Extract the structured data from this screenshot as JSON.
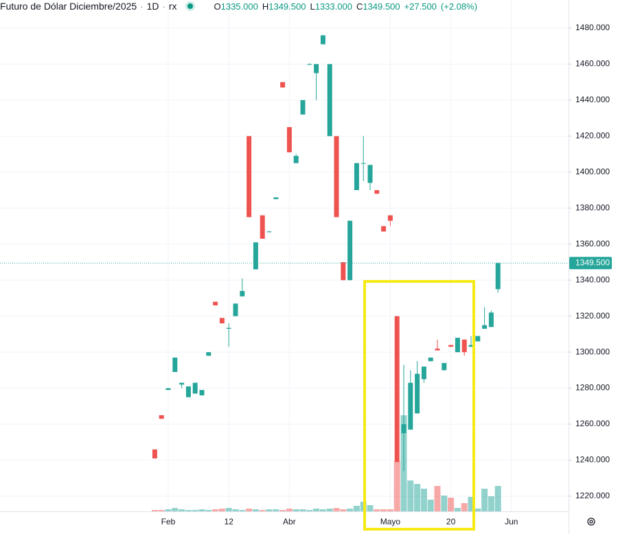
{
  "chart_data": {
    "type": "candlestick",
    "title": "Futuro de Dólar Diciembre/2025",
    "interval": "1D",
    "exchange": "rx",
    "ohlc": [
      {
        "name": "O",
        "text": "1335.000"
      },
      {
        "name": "H",
        "text": "1349.500"
      },
      {
        "name": "L",
        "text": "1333.000"
      },
      {
        "name": "C",
        "text": "1349.500"
      }
    ],
    "change": "+27.500",
    "change_pct": "(+2.08%)",
    "categories": [
      null,
      null,
      "Feb",
      null,
      null,
      null,
      null,
      null,
      null,
      null,
      null,
      "12",
      null,
      null,
      null,
      null,
      null,
      null,
      null,
      null,
      "Abr",
      null,
      null,
      null,
      null,
      null,
      null,
      null,
      null,
      null,
      null,
      null,
      null,
      null,
      null,
      "Mayo",
      null,
      null,
      null,
      null,
      null,
      null,
      null,
      null,
      "20",
      null,
      null,
      null,
      null,
      null,
      null,
      null,
      null,
      "Jun"
    ],
    "open": [
      1246,
      1265,
      1279,
      1289,
      1282,
      1275,
      1277,
      1276,
      1298,
      1328,
      1319,
      1313,
      1320,
      1331,
      1420,
      1346,
      1376,
      1367,
      1385,
      1450,
      1425,
      1405,
      1432,
      1460,
      1455,
      1471,
      1420,
      1420,
      1350,
      1340,
      1390,
      1405,
      1394,
      1390,
      1370,
      1376,
      1320,
      1255,
      1257,
      1266,
      1285,
      1295,
      1302,
      1290,
      1304,
      1300,
      1307,
      1303,
      1306,
      1313,
      1314,
      1335,
      null,
      null
    ],
    "high": [
      1246,
      1265,
      1280,
      1297,
      1283,
      1281,
      1283,
      1279,
      1300,
      1328,
      1319,
      1316,
      1327,
      1341,
      1420,
      1361,
      1376,
      1367.5,
      1386,
      1450,
      1425,
      1410,
      1440,
      1460.5,
      1460,
      1476,
      1460,
      1420,
      1350,
      1373,
      1405,
      1420,
      1404,
      1390,
      1370,
      1376,
      1320,
      1293,
      1290,
      1295,
      1292,
      1297,
      1307,
      1294,
      1304,
      1308,
      1307,
      1309,
      1309,
      1325,
      1323,
      1349.5,
      null,
      null
    ],
    "low": [
      1241,
      1263,
      1279,
      1289,
      1280,
      1275,
      1277,
      1276,
      1298,
      1326,
      1316,
      1303,
      1320,
      1331,
      1375,
      1346,
      1363,
      1366.5,
      1385,
      1447,
      1411,
      1405,
      1432,
      1459.5,
      1440,
      1471,
      1420,
      1375,
      1340,
      1340,
      1390,
      1395,
      1390,
      1388,
      1367,
      1370,
      1239,
      1234,
      1257,
      1266,
      1283,
      1295,
      1301,
      1290,
      1303,
      1300,
      1298,
      1303,
      1306,
      1313,
      1314,
      1333,
      null,
      null
    ],
    "close": [
      1241,
      1263,
      1280,
      1297,
      1283,
      1281,
      1283,
      1279,
      1300,
      1326,
      1316,
      1313.5,
      1327,
      1334,
      1375,
      1361,
      1363,
      1367,
      1386,
      1447,
      1411,
      1409,
      1440,
      1460,
      1460,
      1476,
      1460,
      1375,
      1340,
      1373,
      1405,
      1405,
      1404,
      1388,
      1367,
      1373,
      1239,
      1260,
      1283,
      1288,
      1292,
      1297,
      1301,
      1294,
      1303,
      1308,
      1300,
      1304,
      1309,
      1315,
      1322,
      1349.5,
      null,
      null
    ],
    "volume": [
      2,
      2,
      3,
      5,
      3,
      2,
      2,
      3,
      2,
      3,
      4,
      5,
      3,
      2,
      4,
      3,
      2,
      3,
      3,
      2,
      4,
      3,
      3,
      2,
      4,
      3,
      4,
      5,
      3,
      4,
      8,
      14,
      9,
      3,
      3,
      3,
      73,
      140,
      45,
      40,
      33,
      17,
      37,
      23,
      20,
      5,
      12,
      21,
      4,
      33,
      22,
      37,
      null,
      null
    ],
    "volume_lim": [
      0,
      745
    ],
    "up_color": "#26a69a",
    "down_color": "#ef5350",
    "ylim": [
      1211.6,
      1495.6
    ],
    "yticks": [
      {
        "value": 1220,
        "label": "1220.000"
      },
      {
        "value": 1240,
        "label": "1240.000"
      },
      {
        "value": 1260,
        "label": "1260.000"
      },
      {
        "value": 1280,
        "label": "1280.000"
      },
      {
        "value": 1300,
        "label": "1300.000"
      },
      {
        "value": 1320,
        "label": "1320.000"
      },
      {
        "value": 1340,
        "label": "1340.000"
      },
      {
        "value": 1360,
        "label": "1360.000"
      },
      {
        "value": 1380,
        "label": "1380.000"
      },
      {
        "value": 1400,
        "label": "1400.000"
      },
      {
        "value": 1420,
        "label": "1420.000"
      },
      {
        "value": 1440,
        "label": "1440.000"
      },
      {
        "value": 1460,
        "label": "1460.000"
      },
      {
        "value": 1480,
        "label": "1480.000"
      }
    ],
    "last_price": {
      "value": 1349.5,
      "label": "1349.500"
    },
    "grid": true
  }
}
